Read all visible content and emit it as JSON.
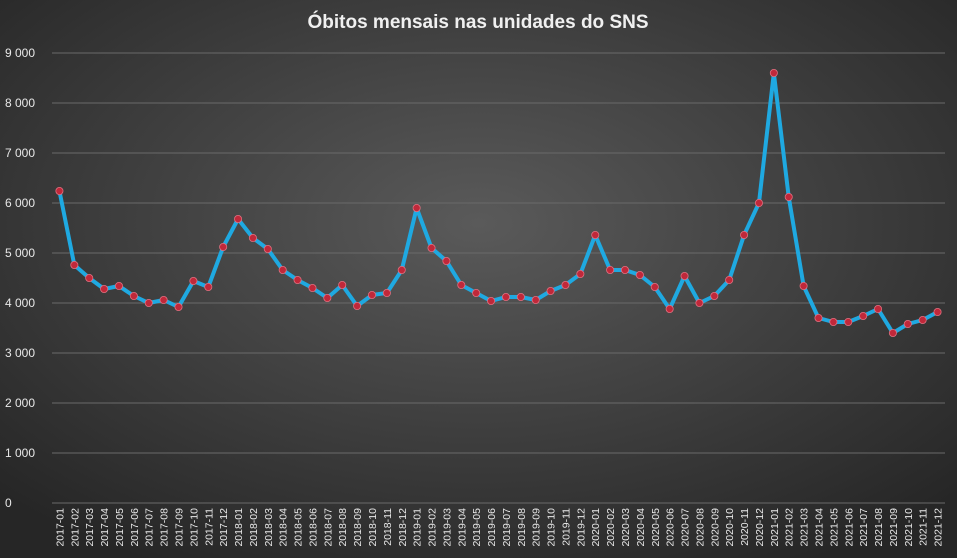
{
  "chart_data": {
    "type": "line",
    "title": "Óbitos mensais nas unidades do SNS",
    "xlabel": "",
    "ylabel": "",
    "ylim": [
      0,
      9000
    ],
    "yticks": [
      0,
      1000,
      2000,
      3000,
      4000,
      5000,
      6000,
      7000,
      8000,
      9000
    ],
    "ytick_labels": [
      "0",
      "1 000",
      "2 000",
      "3 000",
      "4 000",
      "5 000",
      "6 000",
      "7 000",
      "8 000",
      "9 000"
    ],
    "grid": true,
    "legend": "none",
    "colors": {
      "background_center": "#5a5a5a",
      "background_edge": "#262626",
      "line": "#1fa9e1",
      "marker": "#c0283a",
      "grid": "#6a6a6a",
      "text": "#e8e8e8"
    },
    "categories": [
      "2017-01",
      "2017-02",
      "2017-03",
      "2017-04",
      "2017-05",
      "2017-06",
      "2017-07",
      "2017-08",
      "2017-09",
      "2017-10",
      "2017-11",
      "2017-12",
      "2018-01",
      "2018-02",
      "2018-03",
      "2018-04",
      "2018-05",
      "2018-06",
      "2018-07",
      "2018-08",
      "2018-09",
      "2018-10",
      "2018-11",
      "2018-12",
      "2019-01",
      "2019-02",
      "2019-03",
      "2019-04",
      "2019-05",
      "2019-06",
      "2019-07",
      "2019-08",
      "2019-09",
      "2019-10",
      "2019-11",
      "2019-12",
      "2020-01",
      "2020-02",
      "2020-03",
      "2020-04",
      "2020-05",
      "2020-06",
      "2020-07",
      "2020-08",
      "2020-09",
      "2020-10",
      "2020-11",
      "2020-12",
      "2021-01",
      "2021-02",
      "2021-03",
      "2021-04",
      "2021-05",
      "2021-06",
      "2021-07",
      "2021-08",
      "2021-09",
      "2021-10",
      "2021-11",
      "2021-12"
    ],
    "values": [
      6240,
      4760,
      4500,
      4280,
      4340,
      4140,
      4000,
      4060,
      3920,
      4440,
      4320,
      5120,
      5680,
      5300,
      5080,
      4660,
      4460,
      4300,
      4100,
      4360,
      3940,
      4160,
      4200,
      4660,
      5900,
      5100,
      4840,
      4360,
      4200,
      4040,
      4120,
      4120,
      4060,
      4240,
      4360,
      4580,
      5360,
      4660,
      4660,
      4560,
      4320,
      3880,
      4540,
      4000,
      4140,
      4460,
      5360,
      6000,
      8600,
      6120,
      4340,
      3700,
      3620,
      3620,
      3740,
      3880,
      3400,
      3580,
      3660,
      3820
    ]
  }
}
